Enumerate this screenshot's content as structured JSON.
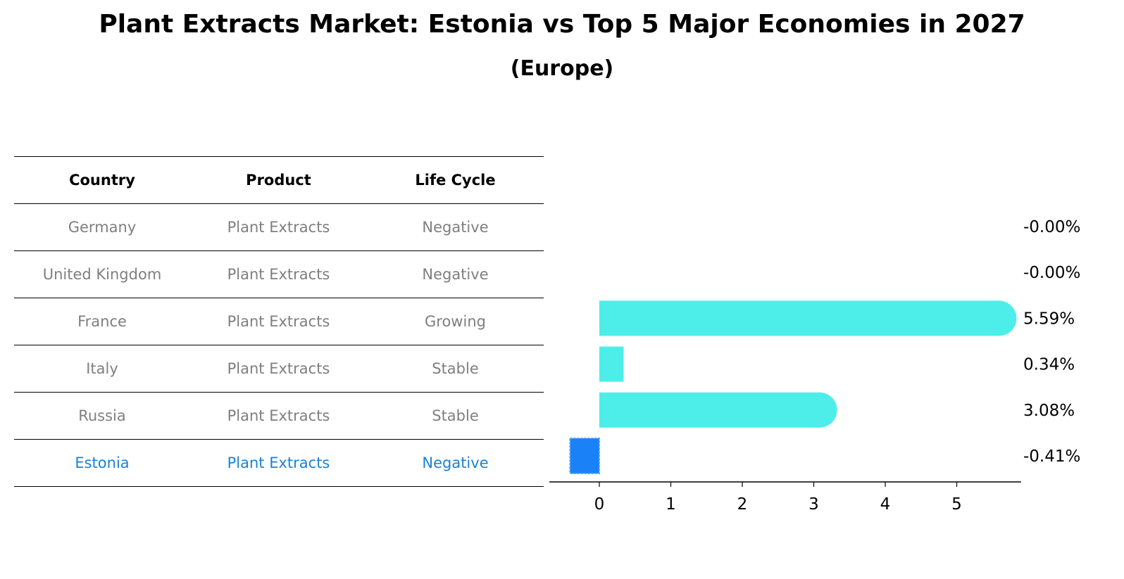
{
  "title": "Plant Extracts Market: Estonia vs Top 5 Major Economies in 2027",
  "subtitle": "(Europe)",
  "table": {
    "headers": [
      "Country",
      "Product",
      "Life Cycle"
    ],
    "rows": [
      [
        "Germany",
        "Plant Extracts",
        "Negative"
      ],
      [
        "United Kingdom",
        "Plant Extracts",
        "Negative"
      ],
      [
        "France",
        "Plant Extracts",
        "Growing"
      ],
      [
        "Italy",
        "Plant Extracts",
        "Stable"
      ],
      [
        "Russia",
        "Plant Extracts",
        "Stable"
      ],
      [
        "Estonia",
        "Plant Extracts",
        "Negative"
      ]
    ]
  },
  "colors": {
    "bar": "#4deeea",
    "highlight_bar": "#1a82f6",
    "highlight_text": "#1a82d6",
    "muted_text": "#7f7f7f"
  },
  "chart_data": {
    "type": "bar",
    "orientation": "horizontal",
    "categories": [
      "Germany",
      "United Kingdom",
      "France",
      "Italy",
      "Russia",
      "Estonia"
    ],
    "values": [
      -0.0,
      -0.0,
      5.59,
      0.34,
      3.08,
      -0.41
    ],
    "value_labels": [
      "-0.00%",
      "-0.00%",
      "5.59%",
      "0.34%",
      "3.08%",
      "-0.41%"
    ],
    "highlight": "Estonia",
    "xticks": [
      "0",
      "1",
      "2",
      "3",
      "4",
      "5"
    ],
    "xlim": [
      -0.7,
      5.9
    ],
    "grid": false
  }
}
